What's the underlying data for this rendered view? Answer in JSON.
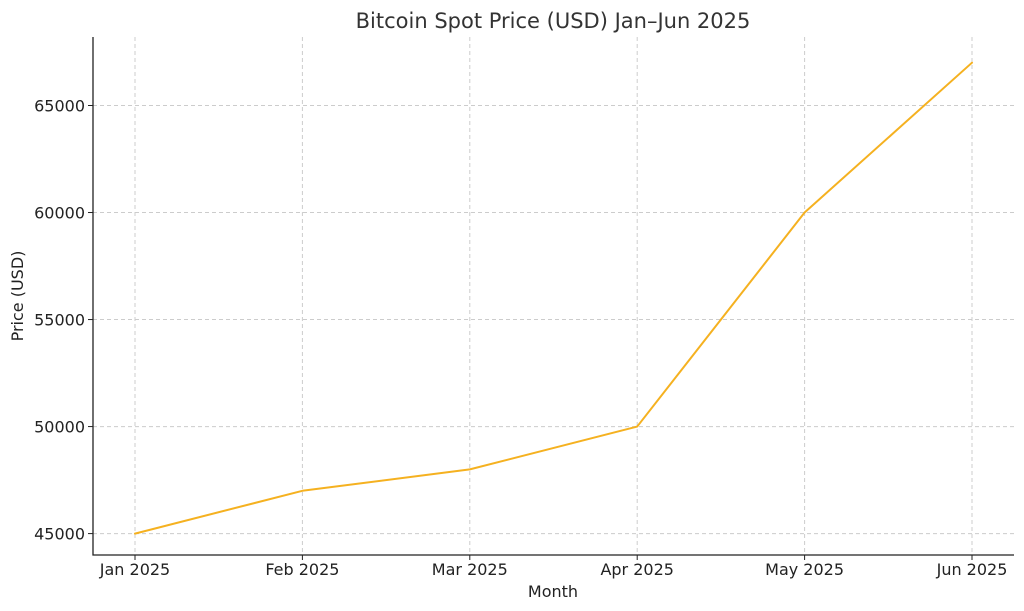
{
  "chart_data": {
    "type": "line",
    "title": "Bitcoin Spot Price (USD) Jan–Jun 2025",
    "xlabel": "Month",
    "ylabel": "Price (USD)",
    "categories": [
      "Jan 2025",
      "Feb 2025",
      "Mar 2025",
      "Apr 2025",
      "May 2025",
      "Jun 2025"
    ],
    "series": [
      {
        "values": [
          45000,
          47000,
          48000,
          50000,
          60000,
          67000
        ],
        "color": "#f5b120"
      }
    ],
    "yticks": [
      45000,
      50000,
      55000,
      60000,
      65000
    ],
    "ylim": [
      44000,
      68200
    ],
    "grid": true,
    "legend": "none"
  }
}
